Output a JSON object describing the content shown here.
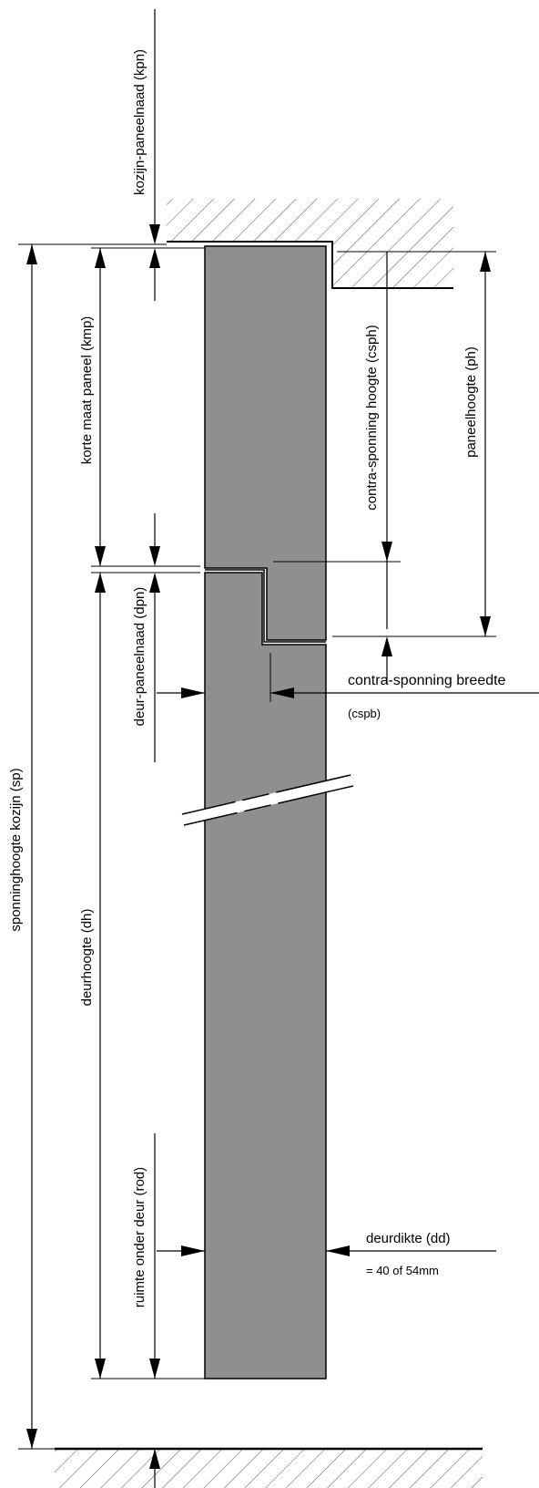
{
  "labels": {
    "kpn": "kozijn-paneelnaad (kpn)",
    "kmp": "korte maat paneel (kmp)",
    "csph": "contra-sponning hoogte (csph)",
    "ph": "paneelhoogte (ph)",
    "dpn": "deur-paneelnaad (dpn)",
    "cspb_line1": "contra-sponning breedte",
    "cspb_line2": "(cspb)",
    "sp": "sponninghoogte kozijn (sp)",
    "dh": "deurhoogte (dh)",
    "dd_line1": "deurdikte (dd)",
    "dd_line2": "= 40 of 54mm",
    "rod": "ruimte onder deur (rod)"
  },
  "colors": {
    "door_fill": "#8f8f8f",
    "line": "#000000",
    "background": "#ffffff"
  }
}
